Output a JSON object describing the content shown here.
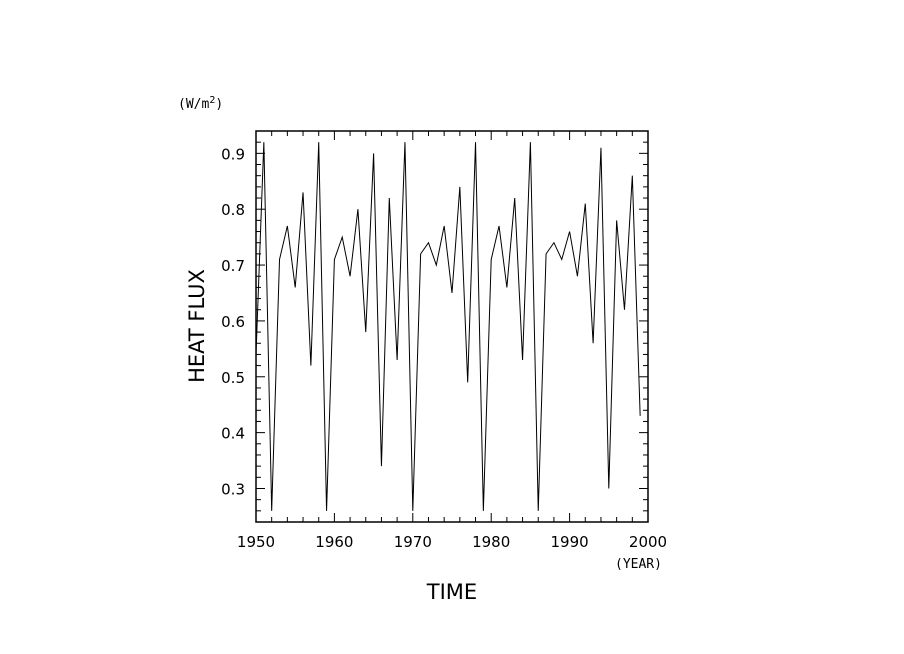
{
  "chart_data": {
    "type": "line",
    "title": "",
    "xlabel": "TIME",
    "ylabel": "HEAT FLUX",
    "x_unit": "(YEAR)",
    "y_unit_base": "(W/m",
    "y_unit_sup": "2",
    "y_unit_end": ")",
    "xlim": [
      1950,
      2000
    ],
    "ylim": [
      0.24,
      0.94
    ],
    "x_ticks": [
      1950,
      1960,
      1970,
      1980,
      1990,
      2000
    ],
    "y_ticks": [
      0.3,
      0.4,
      0.5,
      0.6,
      0.7,
      0.8,
      0.9
    ],
    "grid": false,
    "series": [
      {
        "x": [
          1950,
          1951,
          1952,
          1953,
          1954,
          1955,
          1956,
          1957,
          1958,
          1959,
          1960,
          1961,
          1962,
          1963,
          1964,
          1965,
          1966,
          1967,
          1968,
          1969,
          1970,
          1971,
          1972,
          1973,
          1974,
          1975,
          1976,
          1977,
          1978,
          1979,
          1980,
          1981,
          1982,
          1983,
          1984,
          1985,
          1986,
          1987,
          1988,
          1989,
          1990,
          1991,
          1992,
          1993,
          1994,
          1995,
          1996,
          1997,
          1998,
          1999
        ],
        "values": [
          0.54,
          0.92,
          0.26,
          0.71,
          0.77,
          0.66,
          0.83,
          0.52,
          0.92,
          0.26,
          0.71,
          0.75,
          0.68,
          0.8,
          0.58,
          0.9,
          0.34,
          0.82,
          0.53,
          0.92,
          0.26,
          0.72,
          0.74,
          0.7,
          0.77,
          0.65,
          0.84,
          0.49,
          0.92,
          0.26,
          0.71,
          0.77,
          0.66,
          0.82,
          0.53,
          0.92,
          0.26,
          0.72,
          0.74,
          0.71,
          0.76,
          0.68,
          0.81,
          0.56,
          0.91,
          0.3,
          0.78,
          0.62,
          0.86,
          0.43
        ]
      }
    ]
  }
}
